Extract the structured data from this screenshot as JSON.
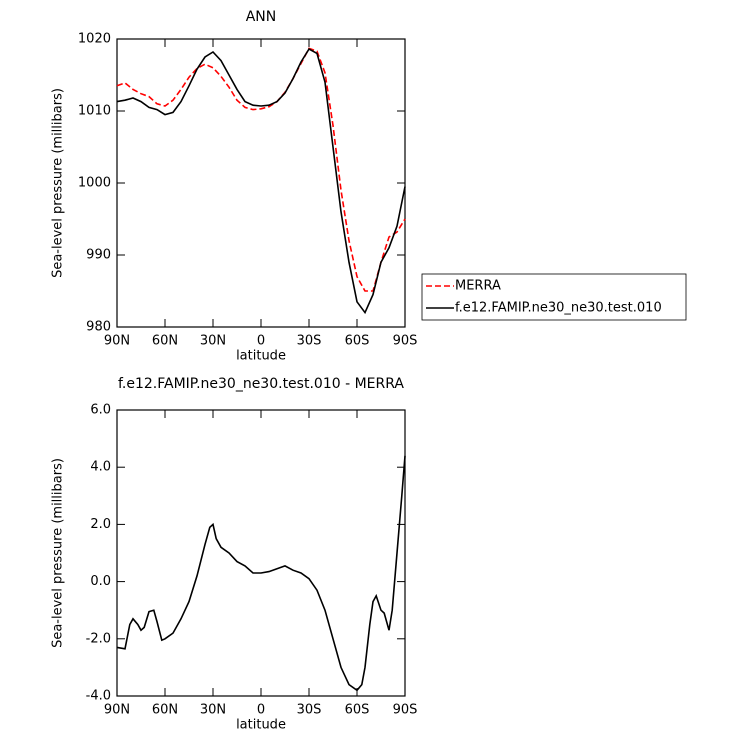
{
  "chart_data": [
    {
      "type": "line",
      "title": "ANN",
      "xlabel": "latitude",
      "ylabel": "Sea-level pressure (millibars)",
      "x": [
        90,
        85,
        80,
        75,
        70,
        65,
        60,
        55,
        50,
        45,
        40,
        35,
        30,
        25,
        20,
        15,
        10,
        5,
        0,
        -5,
        -10,
        -15,
        -20,
        -25,
        -30,
        -35,
        -40,
        -45,
        -50,
        -55,
        -60,
        -65,
        -70,
        -75,
        -80,
        -85,
        -90
      ],
      "series": [
        {
          "name": "MERRA",
          "color": "#ff0000",
          "style": "dashed",
          "values": [
            1013.5,
            1013.9,
            1013.0,
            1012.4,
            1012.0,
            1011.0,
            1010.7,
            1011.5,
            1013.0,
            1014.7,
            1015.9,
            1016.5,
            1016.0,
            1014.8,
            1013.3,
            1011.5,
            1010.5,
            1010.2,
            1010.3,
            1010.6,
            1011.3,
            1012.6,
            1014.5,
            1016.6,
            1018.7,
            1018.3,
            1015.3,
            1008,
            999,
            992,
            987,
            985,
            985,
            989,
            992.5,
            993.2,
            995
          ]
        },
        {
          "name": "f.e12.FAMIP.ne30_ne30.test.010",
          "color": "#000000",
          "style": "solid",
          "values": [
            1011.3,
            1011.5,
            1011.8,
            1011.3,
            1010.5,
            1010.2,
            1009.5,
            1009.8,
            1011.3,
            1013.5,
            1015.8,
            1017.5,
            1018.2,
            1017.0,
            1015.0,
            1013.0,
            1011.3,
            1010.8,
            1010.7,
            1010.8,
            1011.3,
            1012.5,
            1014.5,
            1016.8,
            1018.6,
            1018.0,
            1014.0,
            1005,
            996,
            989,
            983.5,
            982.0,
            984.5,
            989,
            991,
            994,
            999.5
          ]
        }
      ],
      "xlim": [
        90,
        -90
      ],
      "xticks": [
        {
          "value": 90,
          "label": "90N"
        },
        {
          "value": 60,
          "label": "60N"
        },
        {
          "value": 30,
          "label": "30N"
        },
        0,
        {
          "value": -30,
          "label": "30S"
        },
        {
          "value": -60,
          "label": "60S"
        },
        {
          "value": -90,
          "label": "90S"
        }
      ],
      "ylim": [
        980,
        1020
      ],
      "yticks": [
        980,
        990,
        1000,
        1010,
        1020
      ],
      "legend": "outside-right"
    },
    {
      "type": "line",
      "title": "f.e12.FAMIP.ne30_ne30.test.010 - MERRA",
      "xlabel": "latitude",
      "ylabel": "Sea-level pressure (millibars)",
      "x": [
        90,
        85,
        82,
        80,
        77,
        75,
        73,
        70,
        67,
        65,
        62,
        60,
        55,
        50,
        45,
        40,
        35,
        32,
        30,
        28,
        25,
        20,
        15,
        10,
        5,
        0,
        -5,
        -10,
        -15,
        -20,
        -25,
        -30,
        -35,
        -40,
        -45,
        -50,
        -55,
        -60,
        -63,
        -65,
        -68,
        -70,
        -72,
        -75,
        -77,
        -80,
        -82,
        -85,
        -88,
        -90
      ],
      "series": [
        {
          "color": "#000000",
          "style": "solid",
          "values": [
            -2.3,
            -2.35,
            -1.5,
            -1.3,
            -1.5,
            -1.7,
            -1.6,
            -1.05,
            -1.0,
            -1.4,
            -2.05,
            -2.0,
            -1.8,
            -1.3,
            -0.7,
            0.2,
            1.3,
            1.9,
            2.0,
            1.5,
            1.2,
            1.0,
            0.7,
            0.55,
            0.3,
            0.3,
            0.35,
            0.45,
            0.55,
            0.4,
            0.3,
            0.1,
            -0.3,
            -1.0,
            -2.0,
            -3.0,
            -3.6,
            -3.8,
            -3.6,
            -3.0,
            -1.5,
            -0.7,
            -0.5,
            -1.0,
            -1.1,
            -1.7,
            -1.0,
            1.0,
            3.0,
            4.4
          ]
        }
      ],
      "xlim": [
        90,
        -90
      ],
      "xticks": [
        {
          "value": 90,
          "label": "90N"
        },
        {
          "value": 60,
          "label": "60N"
        },
        {
          "value": 30,
          "label": "30N"
        },
        0,
        {
          "value": -30,
          "label": "30S"
        },
        {
          "value": -60,
          "label": "60S"
        },
        {
          "value": -90,
          "label": "90S"
        }
      ],
      "ylim": [
        -4,
        6
      ],
      "yticks": [
        {
          "value": -4,
          "label": "-4.0"
        },
        {
          "value": -2,
          "label": "-2.0"
        },
        {
          "value": 0,
          "label": "0.0"
        },
        {
          "value": 2,
          "label": "2.0"
        },
        {
          "value": 4,
          "label": "4.0"
        },
        {
          "value": 6,
          "label": "6.0"
        }
      ]
    }
  ]
}
